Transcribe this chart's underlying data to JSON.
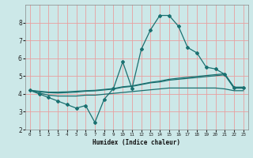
{
  "title": "",
  "xlabel": "Humidex (Indice chaleur)",
  "bg_color": "#cce8e8",
  "grid_color": "#e8a0a0",
  "line_color": "#1a7070",
  "x_main": [
    0,
    1,
    2,
    3,
    4,
    5,
    6,
    7,
    8,
    9,
    10,
    11,
    12,
    13,
    14,
    15,
    16,
    17,
    18,
    19,
    20,
    21,
    22,
    23
  ],
  "y_main": [
    4.2,
    4.0,
    3.8,
    3.6,
    3.4,
    3.2,
    3.35,
    2.4,
    3.7,
    4.3,
    5.8,
    4.3,
    6.5,
    7.6,
    8.4,
    8.4,
    7.8,
    6.6,
    6.3,
    5.5,
    5.4,
    5.1,
    4.35,
    4.35
  ],
  "y_line1": [
    4.2,
    4.15,
    4.1,
    4.1,
    4.12,
    4.15,
    4.18,
    4.2,
    4.25,
    4.3,
    4.4,
    4.45,
    4.55,
    4.65,
    4.72,
    4.82,
    4.88,
    4.93,
    4.98,
    5.03,
    5.08,
    5.13,
    4.38,
    4.38
  ],
  "y_line2": [
    4.2,
    4.12,
    4.07,
    4.05,
    4.07,
    4.1,
    4.15,
    4.17,
    4.22,
    4.27,
    4.37,
    4.42,
    4.52,
    4.62,
    4.67,
    4.77,
    4.82,
    4.87,
    4.92,
    4.97,
    5.02,
    5.07,
    4.32,
    4.32
  ],
  "y_line3": [
    4.2,
    4.05,
    3.93,
    3.88,
    3.88,
    3.88,
    3.93,
    3.93,
    3.98,
    4.03,
    4.08,
    4.13,
    4.18,
    4.23,
    4.28,
    4.33,
    4.33,
    4.33,
    4.33,
    4.33,
    4.33,
    4.28,
    4.18,
    4.18
  ],
  "ylim": [
    2.0,
    9.0
  ],
  "xlim": [
    -0.5,
    23.5
  ],
  "yticks": [
    2,
    3,
    4,
    5,
    6,
    7,
    8
  ],
  "xticks": [
    0,
    1,
    2,
    3,
    4,
    5,
    6,
    7,
    8,
    9,
    10,
    11,
    12,
    13,
    14,
    15,
    16,
    17,
    18,
    19,
    20,
    21,
    22,
    23
  ]
}
